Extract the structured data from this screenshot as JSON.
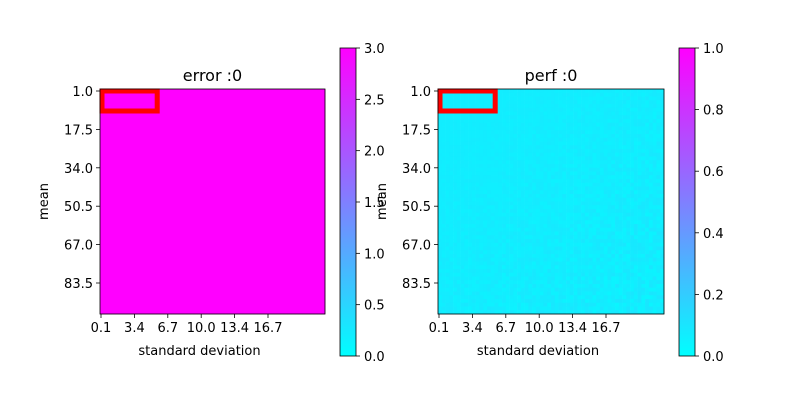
{
  "chart_data": [
    {
      "type": "heatmap",
      "title": "error :0",
      "xlabel": "standard deviation",
      "ylabel": "mean",
      "x_ticks": [
        "0.1",
        "3.4",
        "6.7",
        "10.0",
        "13.4",
        "16.7"
      ],
      "y_ticks": [
        "1.0",
        "17.5",
        "34.0",
        "50.5",
        "67.0",
        "83.5"
      ],
      "fill_value": 3.0,
      "colorbar": {
        "ticks": [
          "0.0",
          "0.5",
          "1.0",
          "1.5",
          "2.0",
          "2.5",
          "3.0"
        ],
        "min": 0.0,
        "max": 3.0,
        "cmap": "cool"
      },
      "highlight": {
        "x_range": [
          "0.1",
          "3.4"
        ],
        "y_range": [
          "1.0",
          "17.5"
        ],
        "color": "#ff0000"
      },
      "noise": false
    },
    {
      "type": "heatmap",
      "title": "perf :0",
      "xlabel": "standard deviation",
      "ylabel": "mean",
      "x_ticks": [
        "0.1",
        "3.4",
        "6.7",
        "10.0",
        "13.4",
        "16.7"
      ],
      "y_ticks": [
        "1.0",
        "17.5",
        "34.0",
        "50.5",
        "67.0",
        "83.5"
      ],
      "fill_value": 0.07,
      "colorbar": {
        "ticks": [
          "0.0",
          "0.2",
          "0.4",
          "0.6",
          "0.8",
          "1.0"
        ],
        "min": 0.0,
        "max": 1.0,
        "cmap": "cool"
      },
      "highlight": {
        "x_range": [
          "0.1",
          "3.4"
        ],
        "y_range": [
          "1.0",
          "17.5"
        ],
        "color": "#ff0000"
      },
      "noise": true
    }
  ],
  "colors": {
    "cmap_low": "#00ffff",
    "cmap_high": "#ff00ff",
    "highlight": "#ff0000"
  }
}
